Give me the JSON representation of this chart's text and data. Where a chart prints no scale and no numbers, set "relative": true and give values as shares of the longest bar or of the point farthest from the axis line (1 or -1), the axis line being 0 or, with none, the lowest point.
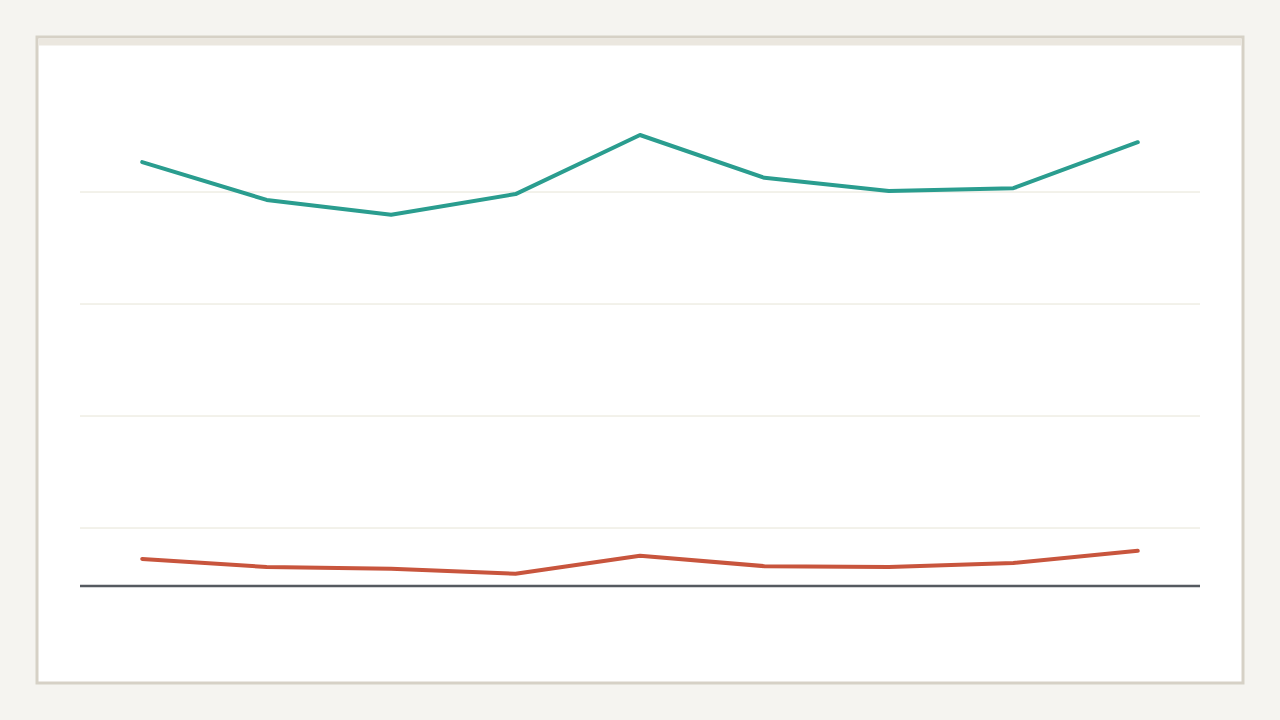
{
  "chart_data": {
    "type": "line",
    "relative": true,
    "grid": "y",
    "marker": "none",
    "line_style": "solid",
    "categories": [
      null,
      null,
      null,
      null,
      null,
      null,
      null,
      null,
      null
    ],
    "series": [
      {
        "color": "#2a9d8f",
        "values": [
          0.94,
          0.856,
          0.823,
          0.869,
          1,
          0.905,
          0.876,
          0.882,
          0.984
        ]
      },
      {
        "color": "#c8553d",
        "values": [
          0.06,
          0.042,
          0.038,
          0.027,
          0.067,
          0.044,
          0.042,
          0.051,
          0.078
        ]
      }
    ]
  }
}
